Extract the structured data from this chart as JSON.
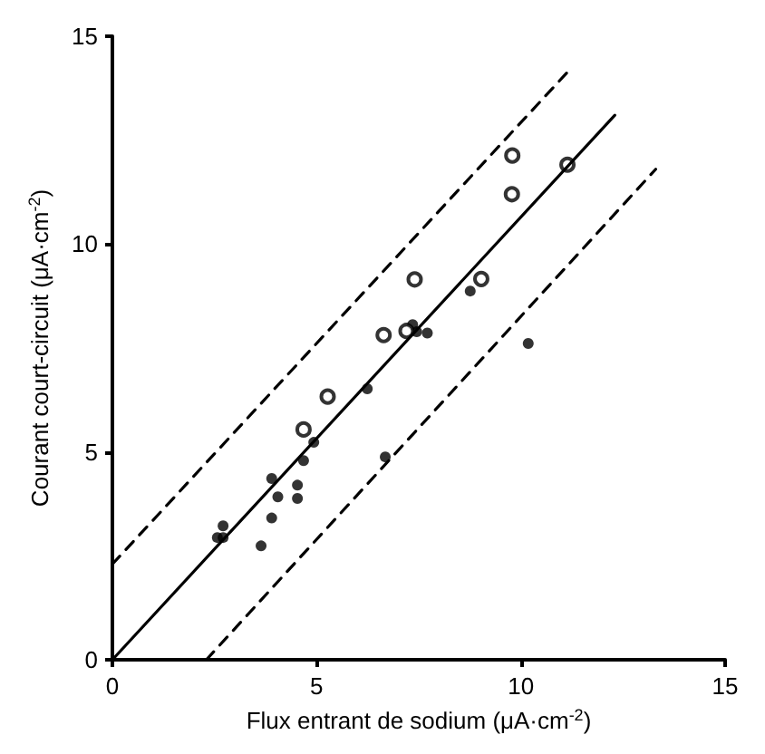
{
  "chart_data": {
    "type": "scatter",
    "xlabel": "Flux entrant de sodium (μA·cm$^{-2}$)",
    "ylabel": "Courant court-circuit (μA·cm$^{-2}$)",
    "xlim": [
      0,
      15
    ],
    "ylim": [
      0,
      15
    ],
    "xticks": [
      0,
      5,
      10,
      15
    ],
    "yticks": [
      0,
      5,
      10,
      15
    ],
    "grid": false,
    "series": [
      {
        "marker": "circle",
        "color": "#000000",
        "x": [
          2.71,
          2.57,
          2.71,
          3.64,
          3.9,
          3.9,
          4.05,
          4.53,
          4.53,
          4.68,
          4.93,
          6.68,
          6.24,
          8.76,
          7.35,
          7.45,
          7.71,
          10.18
        ],
        "values": [
          3.22,
          2.94,
          2.94,
          2.74,
          3.41,
          4.36,
          3.92,
          4.2,
          3.88,
          4.79,
          5.23,
          4.88,
          6.52,
          8.87,
          8.06,
          7.89,
          7.86,
          7.61
        ]
      },
      {
        "marker": "open_circle",
        "color": "#000000",
        "x": [
          4.68,
          5.27,
          6.64,
          7.2,
          7.4,
          9.03,
          9.78,
          9.79,
          11.14
        ],
        "values": [
          5.54,
          6.33,
          7.81,
          7.91,
          9.15,
          9.16,
          11.2,
          12.13,
          11.91
        ]
      },
      {
        "type": "line",
        "marker": "none",
        "line_style": "solid",
        "color": "#000000",
        "x": [
          0,
          12.3
        ],
        "values": [
          0,
          13.1
        ]
      },
      {
        "type": "line",
        "marker": "none",
        "line_style": "dashed",
        "color": "#000000",
        "x": [
          0,
          11.2
        ],
        "values": [
          2.3,
          14.2
        ]
      },
      {
        "type": "line",
        "marker": "none",
        "line_style": "dashed",
        "color": "#000000",
        "x": [
          2.3,
          13.3
        ],
        "values": [
          0,
          11.8
        ]
      }
    ]
  }
}
